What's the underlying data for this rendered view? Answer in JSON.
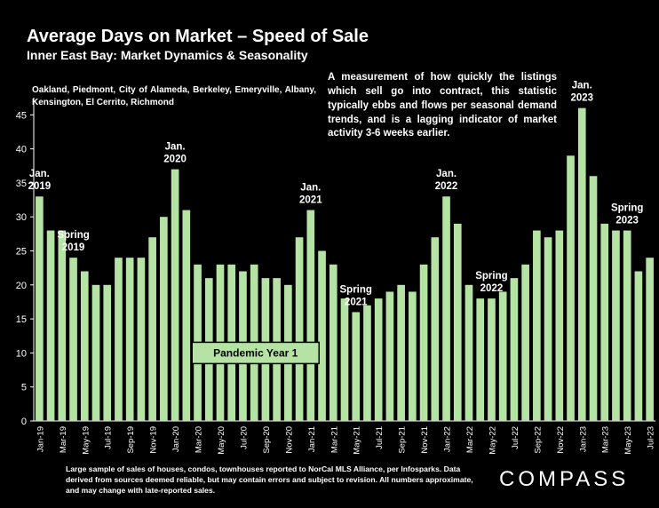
{
  "header": {
    "title": "Average Days on Market – Speed of Sale",
    "subtitle": "Inner East Bay: Market Dynamics & Seasonality",
    "region": "Oakland, Piedmont, City of Alameda, Berkeley, Emeryville, Albany, Kensington, El Cerrito, Richmond",
    "description": "A measurement of how quickly the listings which sell go into contract, this statistic typically ebbs and flows per seasonal demand trends, and is a lagging indicator of market activity 3-6 weeks earlier."
  },
  "footer": {
    "note": "Large sample of sales of houses, condos, townhouses reported to NorCal MLS Alliance, per Infosparks. Data derived from sources deemed reliable, but may contain errors and subject to revision. All numbers approximate, and may change with late-reported sales.",
    "logo": "COMPASS"
  },
  "colors": {
    "background": "#000000",
    "bar": "#b5e3a3",
    "text": "#ffffff",
    "box_fill": "#b5e3a3",
    "box_text": "#000000"
  },
  "chart_data": {
    "type": "bar",
    "title": "Average Days on Market – Speed of Sale",
    "xlabel": "",
    "ylabel": "",
    "ylim": [
      0,
      47
    ],
    "yticks": [
      0,
      5,
      10,
      15,
      20,
      25,
      30,
      35,
      40,
      45
    ],
    "grid": false,
    "categories": [
      "Jan-19",
      "Feb-19",
      "Mar-19",
      "Apr-19",
      "May-19",
      "Jun-19",
      "Jul-19",
      "Aug-19",
      "Sep-19",
      "Oct-19",
      "Nov-19",
      "Dec-19",
      "Jan-20",
      "Feb-20",
      "Mar-20",
      "Apr-20",
      "May-20",
      "Jun-20",
      "Jul-20",
      "Aug-20",
      "Sep-20",
      "Oct-20",
      "Nov-20",
      "Dec-20",
      "Jan-21",
      "Feb-21",
      "Mar-21",
      "Apr-21",
      "May-21",
      "Jun-21",
      "Jul-21",
      "Aug-21",
      "Sep-21",
      "Oct-21",
      "Nov-21",
      "Dec-21",
      "Jan-22",
      "Feb-22",
      "Mar-22",
      "Apr-22",
      "May-22",
      "Jun-22",
      "Jul-22",
      "Aug-22",
      "Sep-22",
      "Oct-22",
      "Nov-22",
      "Dec-22",
      "Jan-23",
      "Feb-23",
      "Mar-23",
      "Apr-23",
      "May-23",
      "Jun-23",
      "Jul-23"
    ],
    "values": [
      33,
      28,
      28,
      24,
      22,
      20,
      20,
      24,
      24,
      24,
      27,
      30,
      37,
      31,
      23,
      21,
      23,
      23,
      22,
      23,
      21,
      21,
      20,
      27,
      31,
      25,
      23,
      18,
      16,
      17,
      18,
      19,
      20,
      19,
      23,
      27,
      33,
      29,
      20,
      18,
      18,
      19,
      21,
      23,
      28,
      27,
      28,
      39,
      46,
      36,
      29,
      28,
      28,
      22,
      24
    ],
    "xtick_labels": [
      "Jan-19",
      "Mar-19",
      "May-19",
      "Jul-19",
      "Sep-19",
      "Nov-19",
      "Jan-20",
      "Mar-20",
      "May-20",
      "Jul-20",
      "Sep-20",
      "Nov-20",
      "Jan-21",
      "Mar-21",
      "May-21",
      "Jul-21",
      "Sep-21",
      "Nov-21",
      "Jan-22",
      "Mar-22",
      "May-22",
      "Jul-22",
      "Sep-22",
      "Nov-22",
      "Jan-23",
      "Mar-23",
      "May-23",
      "Jul-23"
    ],
    "annotations": [
      {
        "lines": [
          "Jan.",
          "2019"
        ],
        "category": "Jan-19"
      },
      {
        "lines": [
          "Spring",
          "2019"
        ],
        "category": "Apr-19"
      },
      {
        "lines": [
          "Jan.",
          "2020"
        ],
        "category": "Jan-20"
      },
      {
        "lines": [
          "Jan.",
          "2021"
        ],
        "category": "Jan-21"
      },
      {
        "lines": [
          "Spring",
          "2021"
        ],
        "category": "May-21"
      },
      {
        "lines": [
          "Jan.",
          "2022"
        ],
        "category": "Jan-22"
      },
      {
        "lines": [
          "Spring",
          "2022"
        ],
        "category": "May-22"
      },
      {
        "lines": [
          "Jan.",
          "2023"
        ],
        "category": "Jan-23"
      },
      {
        "lines": [
          "Spring",
          "2023"
        ],
        "category": "May-23"
      }
    ],
    "boxed_annotation": {
      "text": "Pandemic Year 1",
      "from": "Mar-20",
      "to": "Feb-21",
      "y": 10
    }
  }
}
